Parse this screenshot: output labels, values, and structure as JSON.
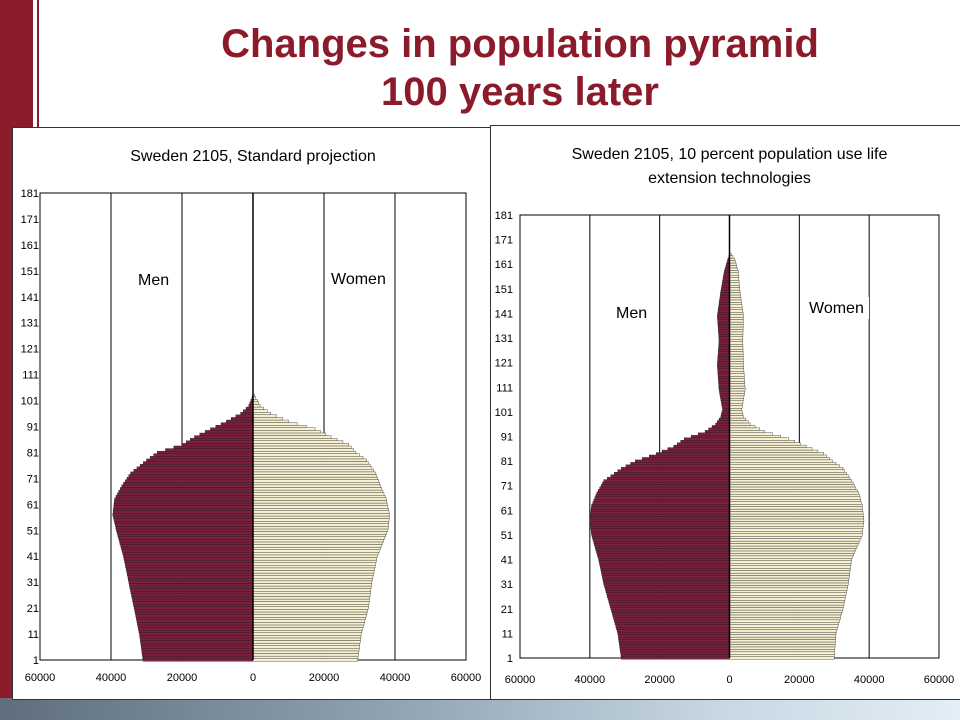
{
  "slide": {
    "title_line1": "Changes in population pyramid",
    "title_line2": "100 years later",
    "accent_color": "#8b1a2a"
  },
  "chart_data": [
    {
      "type": "bar",
      "orientation": "horizontal",
      "title": "Sweden 2105, Standard projection",
      "title_lines": [
        "Sweden 2105, Standard projection"
      ],
      "y_ticks": [
        1,
        11,
        21,
        31,
        41,
        51,
        61,
        71,
        81,
        91,
        101,
        111,
        121,
        131,
        141,
        151,
        161,
        171,
        181
      ],
      "x_ticks": [
        60000,
        40000,
        20000,
        0,
        20000,
        40000,
        60000
      ],
      "xlim": [
        -60000,
        60000
      ],
      "ylim": [
        1,
        181
      ],
      "grid": "vertical",
      "series": [
        {
          "name": "Men",
          "color": "#7a1f3d",
          "points": [
            [
              1,
              31000
            ],
            [
              11,
              32000
            ],
            [
              21,
              33500
            ],
            [
              31,
              35000
            ],
            [
              41,
              36500
            ],
            [
              51,
              38500
            ],
            [
              57,
              39500
            ],
            [
              63,
              39000
            ],
            [
              68,
              37000
            ],
            [
              73,
              34500
            ],
            [
              78,
              30000
            ],
            [
              81,
              27000
            ],
            [
              84,
              20000
            ],
            [
              87,
              16500
            ],
            [
              90,
              12000
            ],
            [
              93,
              7500
            ],
            [
              96,
              3500
            ],
            [
              99,
              1200
            ],
            [
              102,
              300
            ],
            [
              104,
              0
            ]
          ]
        },
        {
          "name": "Women",
          "color": "#f6f0d2",
          "points": [
            [
              1,
              29500
            ],
            [
              11,
              30500
            ],
            [
              21,
              32500
            ],
            [
              31,
              33500
            ],
            [
              41,
              35000
            ],
            [
              51,
              38000
            ],
            [
              57,
              38500
            ],
            [
              63,
              37500
            ],
            [
              68,
              36000
            ],
            [
              73,
              34500
            ],
            [
              78,
              32000
            ],
            [
              81,
              29000
            ],
            [
              84,
              27000
            ],
            [
              87,
              22000
            ],
            [
              90,
              17500
            ],
            [
              93,
              10000
            ],
            [
              96,
              5000
            ],
            [
              99,
              2000
            ],
            [
              102,
              800
            ],
            [
              104,
              0
            ]
          ]
        }
      ],
      "labels": {
        "men": "Men",
        "women": "Women"
      }
    },
    {
      "type": "bar",
      "orientation": "horizontal",
      "title": "Sweden 2105, 10 percent population use life extension technologies",
      "title_lines": [
        "Sweden 2105, 10 percent population use life",
        "extension technologies"
      ],
      "y_ticks": [
        1,
        11,
        21,
        31,
        41,
        51,
        61,
        71,
        81,
        91,
        101,
        111,
        121,
        131,
        141,
        151,
        161,
        171,
        181
      ],
      "x_ticks": [
        60000,
        40000,
        20000,
        0,
        20000,
        40000,
        60000
      ],
      "xlim": [
        -60000,
        60000
      ],
      "ylim": [
        1,
        181
      ],
      "grid": "vertical",
      "series": [
        {
          "name": "Men",
          "color": "#7a1f3d",
          "points": [
            [
              1,
              31000
            ],
            [
              11,
              32000
            ],
            [
              21,
              34000
            ],
            [
              31,
              36000
            ],
            [
              41,
              37500
            ],
            [
              51,
              39500
            ],
            [
              57,
              40000
            ],
            [
              63,
              39500
            ],
            [
              68,
              38000
            ],
            [
              73,
              36000
            ],
            [
              78,
              31000
            ],
            [
              81,
              27000
            ],
            [
              84,
              21000
            ],
            [
              87,
              16000
            ],
            [
              90,
              13000
            ],
            [
              93,
              7000
            ],
            [
              96,
              4000
            ],
            [
              99,
              2500
            ],
            [
              102,
              2000
            ],
            [
              110,
              3000
            ],
            [
              120,
              3500
            ],
            [
              130,
              3000
            ],
            [
              140,
              3500
            ],
            [
              150,
              2500
            ],
            [
              158,
              1500
            ],
            [
              163,
              500
            ],
            [
              165,
              0
            ]
          ]
        },
        {
          "name": "Women",
          "color": "#f6f0d2",
          "points": [
            [
              1,
              30000
            ],
            [
              11,
              30500
            ],
            [
              21,
              32500
            ],
            [
              31,
              34000
            ],
            [
              41,
              35000
            ],
            [
              51,
              38000
            ],
            [
              57,
              38500
            ],
            [
              63,
              38000
            ],
            [
              68,
              37000
            ],
            [
              73,
              35000
            ],
            [
              78,
              32500
            ],
            [
              81,
              29500
            ],
            [
              84,
              27000
            ],
            [
              87,
              22000
            ],
            [
              90,
              17000
            ],
            [
              93,
              10000
            ],
            [
              96,
              6000
            ],
            [
              99,
              4000
            ],
            [
              102,
              3500
            ],
            [
              110,
              4500
            ],
            [
              120,
              4000
            ],
            [
              130,
              3800
            ],
            [
              140,
              4000
            ],
            [
              150,
              3000
            ],
            [
              158,
              2500
            ],
            [
              163,
              1500
            ],
            [
              165,
              500
            ],
            [
              166,
              0
            ]
          ]
        }
      ],
      "labels": {
        "men": "Men",
        "women": "Women"
      }
    }
  ]
}
